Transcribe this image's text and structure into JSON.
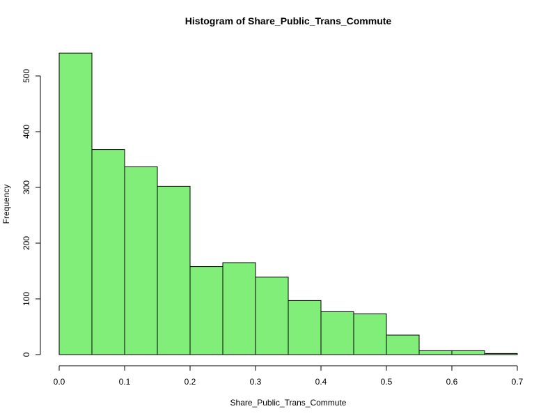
{
  "chart_data": {
    "type": "bar",
    "histogram": true,
    "title": "Histogram of Share_Public_Trans_Commute",
    "xlabel": "Share_Public_Trans_Commute",
    "ylabel": "Frequency",
    "bin_edges": [
      0.0,
      0.05,
      0.1,
      0.15,
      0.2,
      0.25,
      0.3,
      0.35,
      0.4,
      0.45,
      0.5,
      0.55,
      0.6,
      0.65,
      0.7
    ],
    "values": [
      541,
      368,
      337,
      302,
      158,
      165,
      139,
      97,
      77,
      73,
      35,
      7,
      7,
      2
    ],
    "xlim": [
      0.0,
      0.7
    ],
    "ylim": [
      0,
      541
    ],
    "x_ticks": [
      0.0,
      0.1,
      0.2,
      0.3,
      0.4,
      0.5,
      0.6,
      0.7
    ],
    "x_tick_labels": [
      "0.0",
      "0.1",
      "0.2",
      "0.3",
      "0.4",
      "0.5",
      "0.6",
      "0.7"
    ],
    "y_ticks": [
      0,
      100,
      200,
      300,
      400,
      500
    ],
    "y_tick_labels": [
      "0",
      "100",
      "200",
      "300",
      "400",
      "500"
    ],
    "bar_color": "#82ee7a",
    "grid": false
  }
}
